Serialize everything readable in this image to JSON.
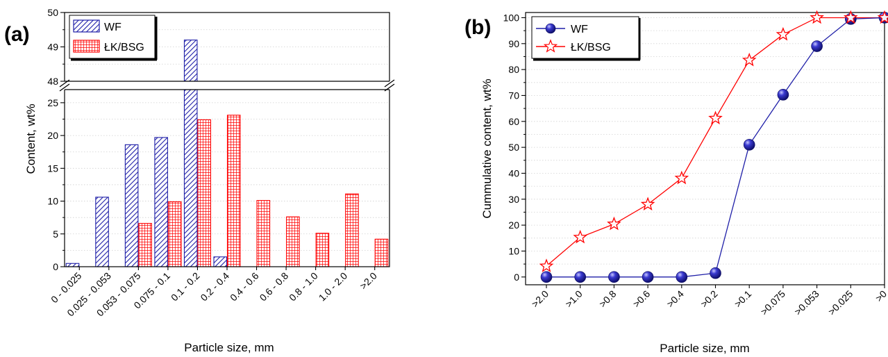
{
  "chart_data": [
    {
      "panel": "(a)",
      "type": "bar",
      "categories": [
        "0 - 0.025",
        "0.025 - 0.053",
        "0.053 - 0.075",
        "0.075 - 0.1",
        "0.1 - 0.2",
        "0.2 - 0.4",
        "0.4 - 0.6",
        "0.6 - 0.8",
        "0.8 - 1.0",
        "1.0 - 2.0",
        ">2.0"
      ],
      "series": [
        {
          "name": "WF",
          "values": [
            0.5,
            10.6,
            18.6,
            19.7,
            49.2,
            1.5,
            0,
            0,
            0,
            0,
            0
          ],
          "color": "#1f1fa8",
          "pattern": "diagonal"
        },
        {
          "name": "ŁK/BSG",
          "values": [
            0,
            0,
            6.6,
            9.9,
            22.4,
            23.1,
            10.1,
            7.6,
            5.1,
            11.1,
            4.2
          ],
          "color": "#ff0000",
          "pattern": "grid"
        }
      ],
      "xlabel": "Particle size, mm",
      "ylabel": "Content, wt%",
      "ylim_lower": [
        0,
        27
      ],
      "ylim_upper": [
        48,
        50
      ],
      "yticks_lower": [
        0,
        5,
        10,
        15,
        20,
        25
      ],
      "yticks_upper": [
        48,
        49,
        50
      ],
      "axis_break": true,
      "legend_position": "top-left"
    },
    {
      "panel": "(b)",
      "type": "line",
      "categories": [
        ">2.0",
        ">1.0",
        ">0.8",
        ">0.6",
        ">0.4",
        ">0.2",
        ">0.1",
        ">0.075",
        ">0.053",
        ">0.025",
        ">0"
      ],
      "series": [
        {
          "name": "WF",
          "values": [
            0,
            0,
            0,
            0,
            0,
            1.5,
            51,
            70.3,
            89,
            99.5,
            100
          ],
          "color": "#1f1fa8",
          "marker": "sphere"
        },
        {
          "name": "ŁK/BSG",
          "values": [
            4.2,
            15.3,
            20.4,
            28,
            38.1,
            61.2,
            83.6,
            93.5,
            100,
            100,
            100
          ],
          "color": "#ff0000",
          "marker": "star"
        }
      ],
      "xlabel": "Particle size, mm",
      "ylabel": "Cummulative content, wt%",
      "ylim": [
        -3,
        102
      ],
      "yticks": [
        0,
        10,
        20,
        30,
        40,
        50,
        60,
        70,
        80,
        90,
        100
      ],
      "legend_position": "top-left"
    }
  ]
}
